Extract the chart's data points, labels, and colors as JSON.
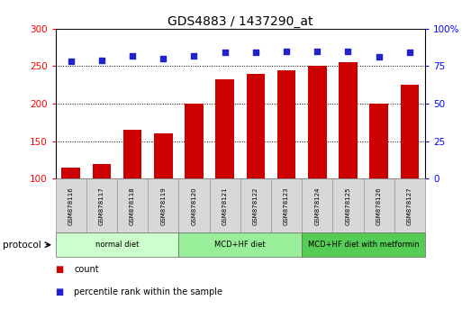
{
  "title": "GDS4883 / 1437290_at",
  "samples": [
    "GSM878116",
    "GSM878117",
    "GSM878118",
    "GSM878119",
    "GSM878120",
    "GSM878121",
    "GSM878122",
    "GSM878123",
    "GSM878124",
    "GSM878125",
    "GSM878126",
    "GSM878127"
  ],
  "counts": [
    115,
    120,
    165,
    160,
    200,
    232,
    240,
    245,
    250,
    255,
    200,
    225
  ],
  "percentile_ranks": [
    78,
    79,
    82,
    80,
    82,
    84,
    84,
    85,
    85,
    85,
    81,
    84
  ],
  "bar_color": "#CC0000",
  "dot_color": "#2222CC",
  "ylim_left": [
    100,
    300
  ],
  "ylim_right": [
    0,
    100
  ],
  "yticks_left": [
    100,
    150,
    200,
    250,
    300
  ],
  "yticks_right": [
    0,
    25,
    50,
    75,
    100
  ],
  "ytick_labels_right": [
    "0",
    "25",
    "50",
    "75",
    "100%"
  ],
  "grid_values": [
    150,
    200,
    250
  ],
  "protocol_groups": [
    {
      "label": "normal diet",
      "start": 0,
      "end": 3,
      "color": "#ccffcc"
    },
    {
      "label": "MCD+HF diet",
      "start": 4,
      "end": 7,
      "color": "#99ee99"
    },
    {
      "label": "MCD+HF diet with metformin",
      "start": 8,
      "end": 11,
      "color": "#55cc55"
    }
  ],
  "legend_count_label": "count",
  "legend_percentile_label": "percentile rank within the sample",
  "protocol_label": "protocol"
}
